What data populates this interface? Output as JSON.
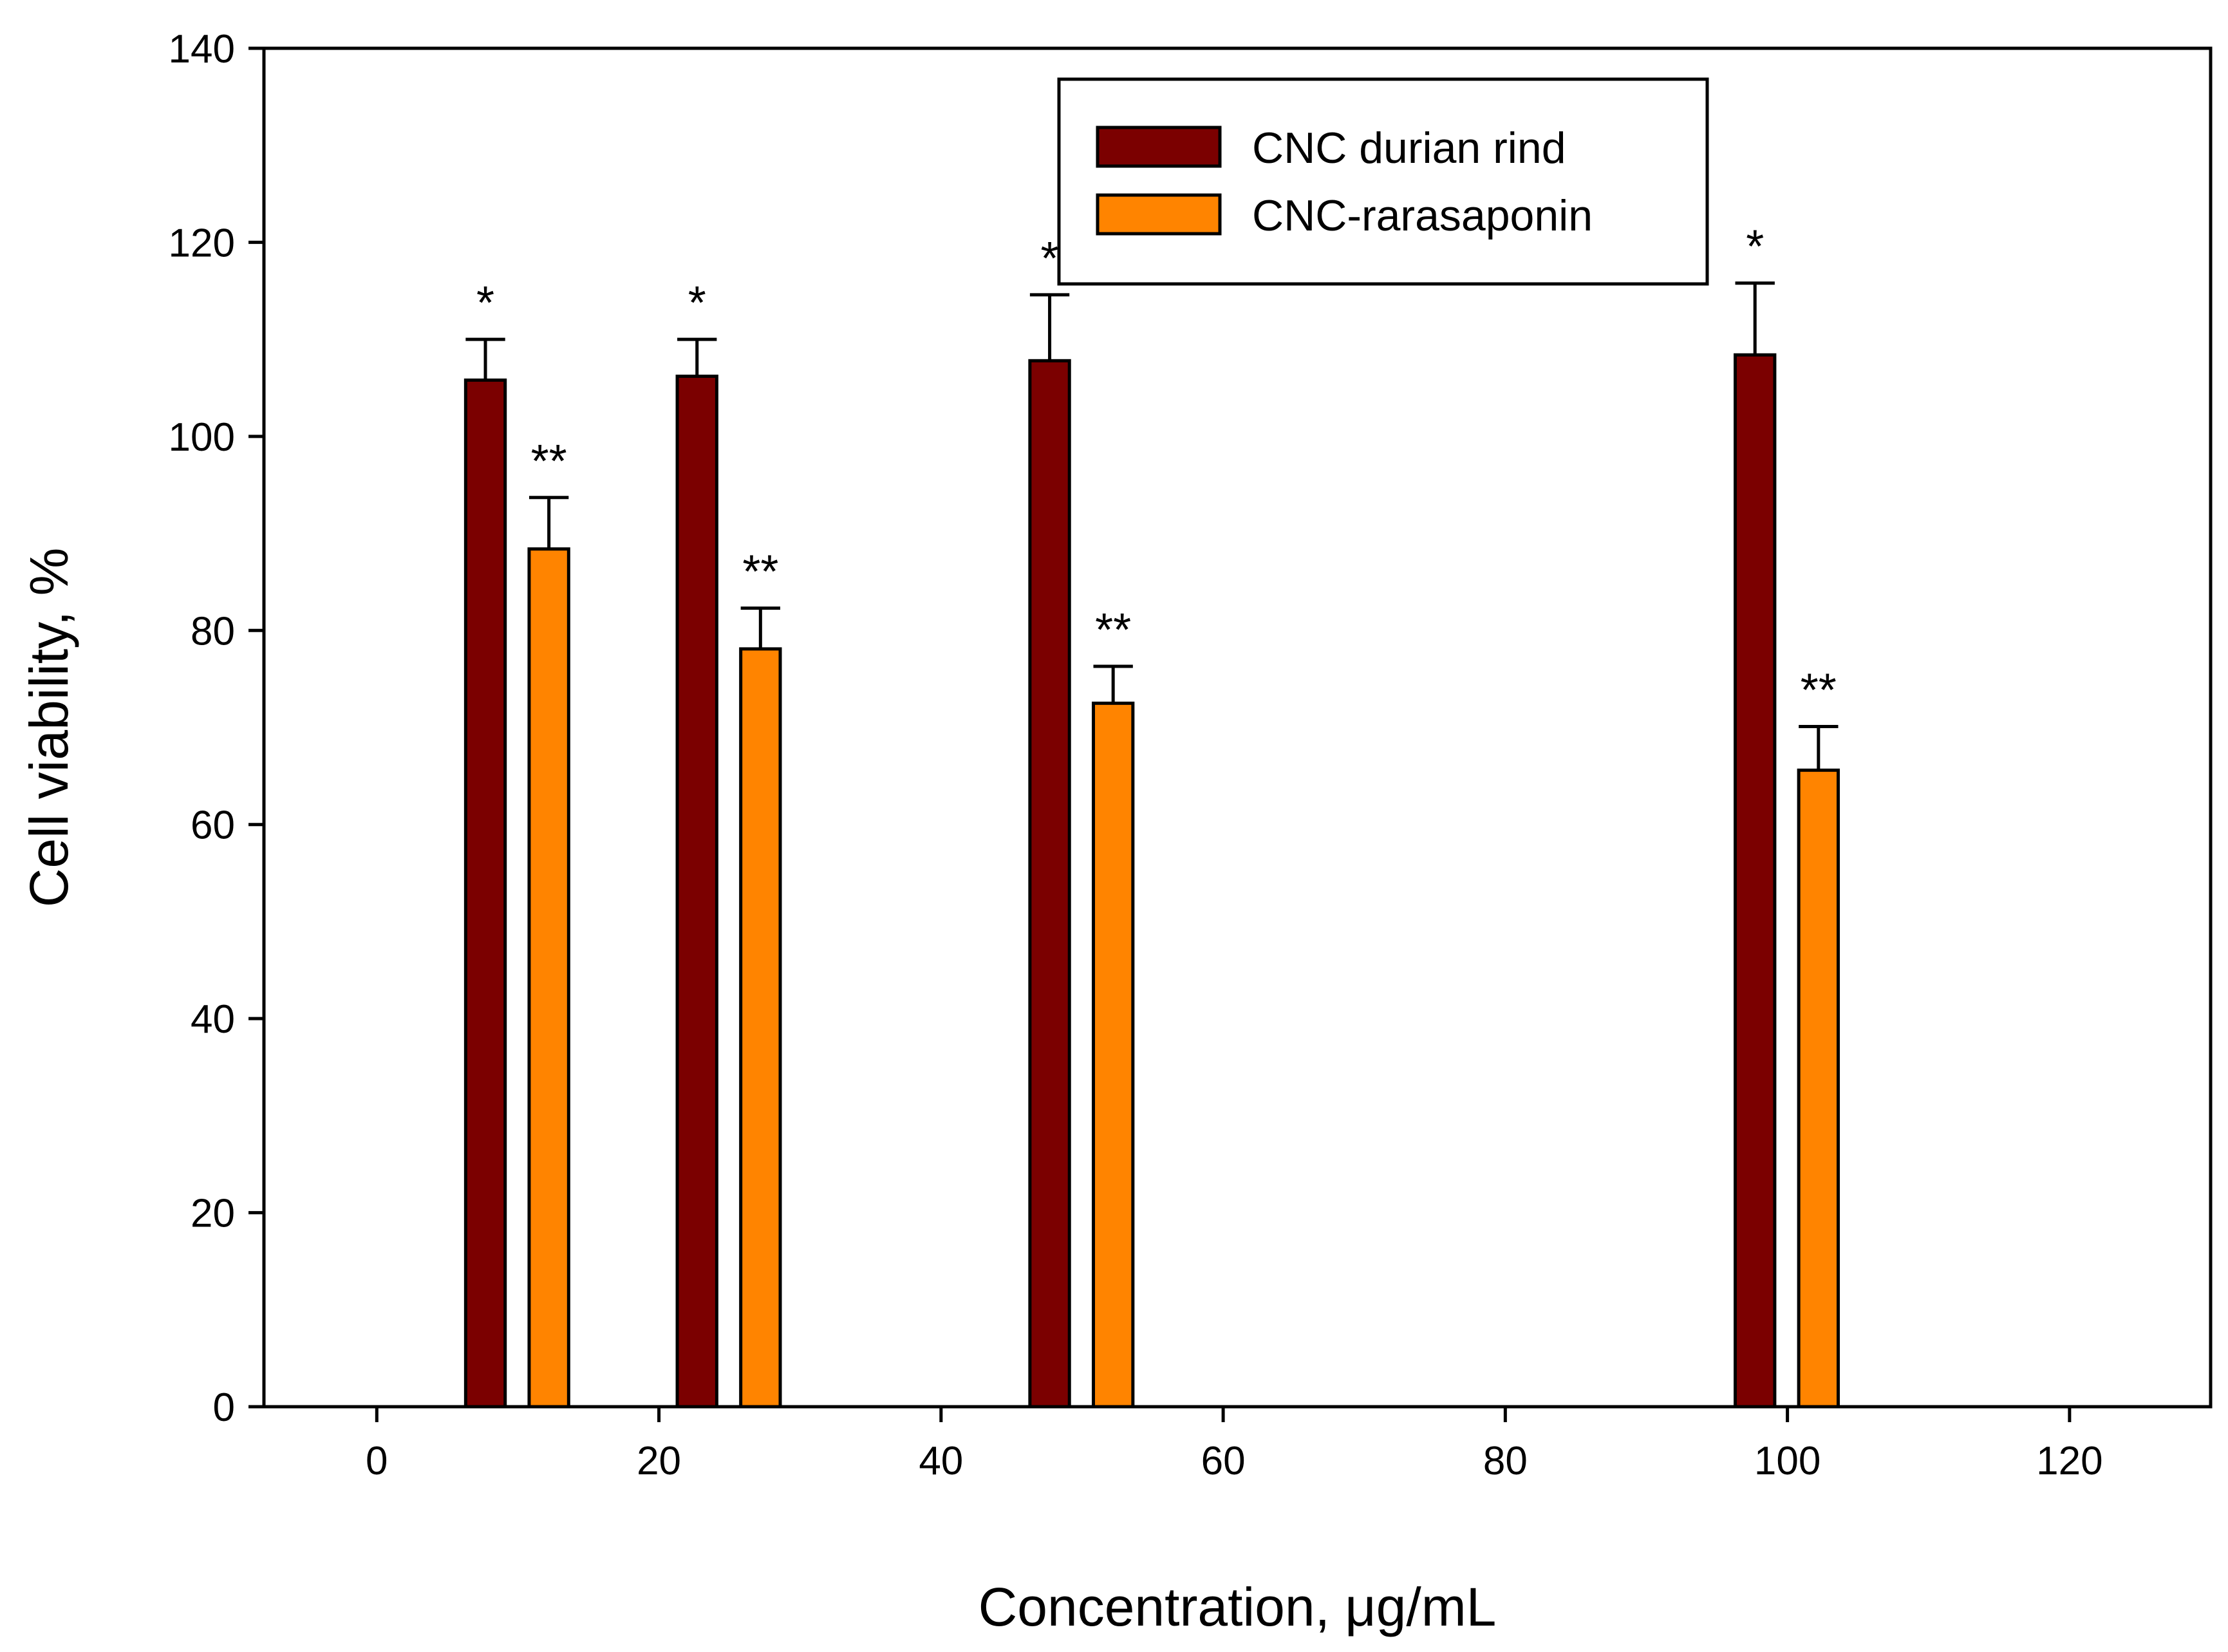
{
  "chart_data": {
    "type": "bar",
    "title": "",
    "xlabel": "Concentration, μg/mL",
    "ylabel": "Cell viability, %",
    "xlim": [
      -8,
      130
    ],
    "ylim": [
      0,
      140
    ],
    "xticks": [
      0,
      20,
      40,
      60,
      80,
      100,
      120
    ],
    "yticks": [
      0,
      20,
      40,
      60,
      80,
      100,
      120,
      140
    ],
    "xtick_labels": [
      "0",
      "20",
      "40",
      "60",
      "80",
      "100",
      "120"
    ],
    "ytick_labels": [
      "0",
      "20",
      "40",
      "60",
      "80",
      "100",
      "120",
      "140"
    ],
    "grid": false,
    "legend_position": "top-center",
    "colors": {
      "CNC durian rind": "#7B0000",
      "CNC-rarasaponin": "#FF8400"
    },
    "series": [
      {
        "name": "CNC durian rind",
        "x": [
          7.7,
          22.7,
          47.7,
          97.7
        ],
        "values": [
          105.8,
          106.2,
          107.8,
          108.4
        ],
        "errors": [
          4.2,
          3.8,
          6.8,
          7.4
        ],
        "annotations": [
          "*",
          "*",
          "*",
          "*"
        ]
      },
      {
        "name": "CNC-rarasaponin",
        "x": [
          12.2,
          27.2,
          52.2,
          102.2
        ],
        "values": [
          88.4,
          78.1,
          72.5,
          65.6
        ],
        "errors": [
          5.3,
          4.2,
          3.8,
          4.5
        ],
        "annotations": [
          "**",
          "**",
          "**",
          "**"
        ]
      }
    ]
  }
}
